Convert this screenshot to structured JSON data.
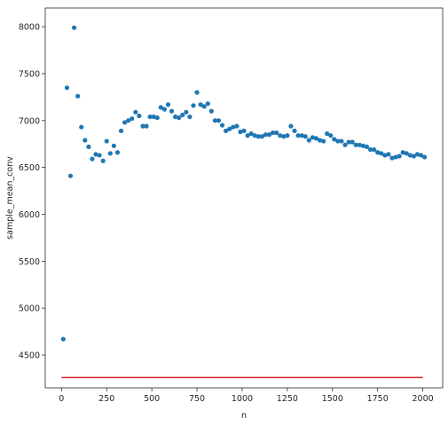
{
  "chart_data": {
    "type": "scatter",
    "xlabel": "n",
    "ylabel": "sample_mean_conv",
    "xlim": [
      -90,
      2110
    ],
    "ylim": [
      4150,
      8200
    ],
    "xticks": [
      0,
      250,
      500,
      750,
      1000,
      1250,
      1500,
      1750,
      2000
    ],
    "yticks": [
      4500,
      5000,
      5500,
      6000,
      6500,
      7000,
      7500,
      8000
    ],
    "grid": false,
    "point_color": "#1f77b4",
    "reference_line": {
      "y": 4260,
      "x": [
        0,
        2000
      ],
      "color": "#d62728"
    },
    "series": [
      {
        "x": [
          10,
          30,
          50,
          70,
          90,
          110,
          130,
          150,
          170,
          190,
          210,
          230,
          250,
          270,
          290,
          310,
          330,
          350,
          370,
          390,
          410,
          430,
          450,
          470,
          490,
          510,
          530,
          550,
          570,
          590,
          610,
          630,
          650,
          670,
          690,
          710,
          730,
          750,
          770,
          790,
          810,
          830,
          850,
          870,
          890,
          910,
          930,
          950,
          970,
          990,
          1010,
          1030,
          1050,
          1070,
          1090,
          1110,
          1130,
          1150,
          1170,
          1190,
          1210,
          1230,
          1250,
          1270,
          1290,
          1310,
          1330,
          1350,
          1370,
          1390,
          1410,
          1430,
          1450,
          1470,
          1490,
          1510,
          1530,
          1550,
          1570,
          1590,
          1610,
          1630,
          1650,
          1670,
          1690,
          1710,
          1730,
          1750,
          1770,
          1790,
          1810,
          1830,
          1850,
          1870,
          1890,
          1910,
          1930,
          1950,
          1970,
          1990,
          2010
        ],
        "y": [
          4670,
          7350,
          6410,
          7990,
          7260,
          6930,
          6790,
          6720,
          6590,
          6640,
          6630,
          6570,
          6780,
          6650,
          6730,
          6660,
          6890,
          6980,
          7000,
          7020,
          7090,
          7050,
          6940,
          6940,
          7040,
          7040,
          7030,
          7140,
          7120,
          7170,
          7100,
          7040,
          7030,
          7060,
          7090,
          7040,
          7160,
          7300,
          7170,
          7150,
          7180,
          7100,
          7000,
          7000,
          6950,
          6890,
          6910,
          6930,
          6940,
          6880,
          6890,
          6840,
          6860,
          6840,
          6830,
          6830,
          6850,
          6850,
          6870,
          6870,
          6840,
          6830,
          6840,
          6940,
          6890,
          6840,
          6840,
          6830,
          6790,
          6820,
          6810,
          6790,
          6780,
          6860,
          6840,
          6800,
          6780,
          6780,
          6740,
          6770,
          6770,
          6740,
          6740,
          6730,
          6720,
          6690,
          6690,
          6660,
          6650,
          6630,
          6640,
          6600,
          6610,
          6620,
          6660,
          6650,
          6630,
          6620,
          6640,
          6630,
          6610
        ]
      }
    ]
  }
}
